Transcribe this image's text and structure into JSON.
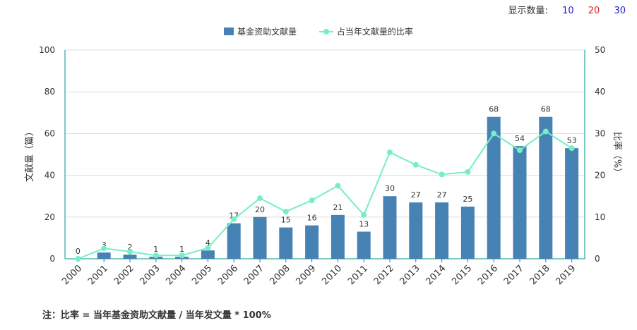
{
  "topbar": {
    "label": "显示数量:",
    "options": [
      {
        "label": "10",
        "color": "#2222cc"
      },
      {
        "label": "20",
        "color": "#dd2222"
      },
      {
        "label": "30",
        "color": "#2222cc"
      }
    ]
  },
  "colors": {
    "bar": "#4682b4",
    "line": "#76eec6",
    "axis": "#009688",
    "grid": "#dddddd",
    "text": "#333333"
  },
  "chart_data": {
    "type": "bar",
    "categories": [
      "2000",
      "2001",
      "2002",
      "2003",
      "2004",
      "2005",
      "2006",
      "2007",
      "2008",
      "2009",
      "2010",
      "2011",
      "2012",
      "2013",
      "2014",
      "2015",
      "2016",
      "2017",
      "2018",
      "2019"
    ],
    "series": [
      {
        "name": "基金资助文献量",
        "type": "bar",
        "axis": "left",
        "values": [
          0,
          3,
          2,
          1,
          1,
          4,
          17,
          20,
          15,
          16,
          21,
          13,
          30,
          27,
          27,
          25,
          68,
          54,
          68,
          53
        ]
      },
      {
        "name": "占当年文献量的比率",
        "type": "line",
        "axis": "right",
        "values": [
          0,
          2.5,
          1.7,
          0.8,
          0.8,
          2.6,
          9.5,
          14.5,
          11.3,
          14,
          17.5,
          10.5,
          25.5,
          22.5,
          20.2,
          20.8,
          30,
          26,
          30.5,
          26.5
        ]
      }
    ],
    "ylabel": "文献量（篇）",
    "y2label": "比率（%）",
    "ylim": [
      0,
      100
    ],
    "y2lim": [
      0,
      50
    ],
    "yticks": [
      0,
      20,
      40,
      60,
      80,
      100
    ],
    "y2ticks": [
      0,
      10,
      20,
      30,
      40,
      50
    ],
    "grid": true,
    "legend": "top-center"
  },
  "note": "注：比率 = 当年基金资助文献量 / 当年发文量 * 100%"
}
